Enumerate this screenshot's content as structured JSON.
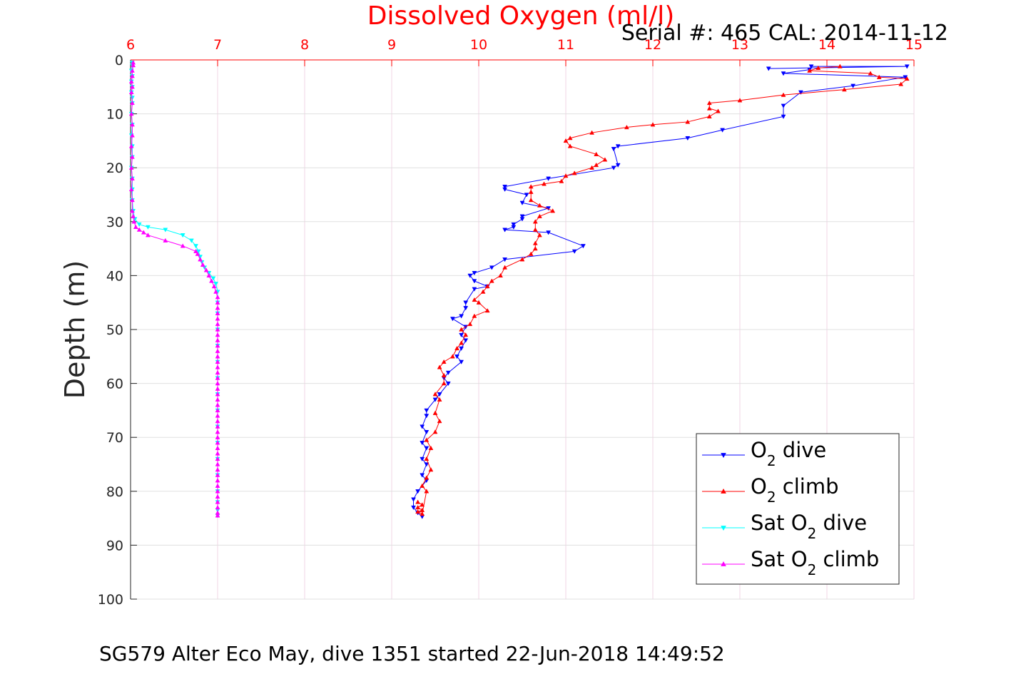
{
  "chart_data": {
    "type": "line",
    "title": "Dissolved Oxygen (ml/l)",
    "subtitle": "Serial #: 465  CAL: 2014-11-12",
    "footer": "SG579 Alter Eco May, dive 1351 started 22-Jun-2018 14:49:52",
    "ylabel": "Depth (m)",
    "xlabel": "",
    "xlim": [
      6,
      15
    ],
    "ylim": [
      0,
      100
    ],
    "y_reversed": true,
    "x_axis_position": "top",
    "grid": true,
    "x_ticks": [
      "6",
      "7",
      "8",
      "9",
      "10",
      "11",
      "12",
      "13",
      "14",
      "15"
    ],
    "y_ticks": [
      "0",
      "10",
      "20",
      "30",
      "40",
      "50",
      "60",
      "70",
      "80",
      "90",
      "100"
    ],
    "legend": {
      "position": "bottom-right",
      "entries": [
        {
          "label": "O",
          "sub": "2",
          "suffix": " dive",
          "color": "#0000ff",
          "marker": "triangle-down"
        },
        {
          "label": "O",
          "sub": "2",
          "suffix": " climb",
          "color": "#ff0000",
          "marker": "triangle-up"
        },
        {
          "label": "Sat O",
          "sub": "2",
          "suffix": " dive",
          "color": "#00ffff",
          "marker": "triangle-down"
        },
        {
          "label": "Sat O",
          "sub": "2",
          "suffix": " climb",
          "color": "#ff00ff",
          "marker": "triangle-up"
        }
      ]
    },
    "series": [
      {
        "name": "O2 dive",
        "color": "#0000ff",
        "marker": "triangle-down",
        "points": [
          [
            13.33,
            1.6
          ],
          [
            14.92,
            1.2
          ],
          [
            13.82,
            1.2
          ],
          [
            13.8,
            1.8
          ],
          [
            13.5,
            2.5
          ],
          [
            14.9,
            3.2
          ],
          [
            14.3,
            4.8
          ],
          [
            13.7,
            6
          ],
          [
            13.5,
            8.5
          ],
          [
            13.5,
            10.5
          ],
          [
            12.8,
            13
          ],
          [
            12.4,
            14.5
          ],
          [
            11.6,
            16
          ],
          [
            11.55,
            16.5
          ],
          [
            11.6,
            19.5
          ],
          [
            11.55,
            20
          ],
          [
            10.8,
            22
          ],
          [
            10.3,
            23.5
          ],
          [
            10.3,
            24
          ],
          [
            10.55,
            25
          ],
          [
            10.5,
            26.5
          ],
          [
            10.8,
            27.5
          ],
          [
            10.5,
            29
          ],
          [
            10.5,
            29.5
          ],
          [
            10.4,
            30.5
          ],
          [
            10.4,
            31
          ],
          [
            10.3,
            31.5
          ],
          [
            10.8,
            32
          ],
          [
            11.2,
            34.5
          ],
          [
            11.1,
            35.5
          ],
          [
            10.3,
            37
          ],
          [
            10.15,
            38.5
          ],
          [
            9.95,
            39.5
          ],
          [
            9.9,
            40
          ],
          [
            9.95,
            41
          ],
          [
            10.1,
            42
          ],
          [
            9.95,
            42.5
          ],
          [
            9.85,
            45
          ],
          [
            9.85,
            46
          ],
          [
            9.8,
            47.5
          ],
          [
            9.7,
            48
          ],
          [
            9.85,
            49.5
          ],
          [
            9.8,
            51
          ],
          [
            9.85,
            52
          ],
          [
            9.8,
            53.5
          ],
          [
            9.75,
            55
          ],
          [
            9.8,
            56
          ],
          [
            9.65,
            58
          ],
          [
            9.6,
            59
          ],
          [
            9.65,
            60
          ],
          [
            9.55,
            62
          ],
          [
            9.5,
            63
          ],
          [
            9.4,
            65
          ],
          [
            9.4,
            66
          ],
          [
            9.35,
            68
          ],
          [
            9.4,
            69
          ],
          [
            9.35,
            71
          ],
          [
            9.4,
            72
          ],
          [
            9.35,
            74
          ],
          [
            9.4,
            75
          ],
          [
            9.35,
            77
          ],
          [
            9.4,
            78
          ],
          [
            9.3,
            80
          ],
          [
            9.25,
            81.5
          ],
          [
            9.25,
            83
          ],
          [
            9.3,
            84
          ],
          [
            9.35,
            84.7
          ]
        ]
      },
      {
        "name": "O2 climb",
        "color": "#ff0000",
        "marker": "triangle-up",
        "points": [
          [
            9.3,
            82
          ],
          [
            9.35,
            82.5
          ],
          [
            9.3,
            83
          ],
          [
            9.35,
            83.5
          ],
          [
            9.3,
            83.8
          ],
          [
            9.35,
            84.2
          ],
          [
            9.4,
            80
          ],
          [
            9.35,
            79
          ],
          [
            9.4,
            77.5
          ],
          [
            9.45,
            76
          ],
          [
            9.4,
            74
          ],
          [
            9.45,
            72
          ],
          [
            9.4,
            70.5
          ],
          [
            9.5,
            69
          ],
          [
            9.55,
            67
          ],
          [
            9.5,
            65.5
          ],
          [
            9.55,
            63
          ],
          [
            9.5,
            62
          ],
          [
            9.6,
            60
          ],
          [
            9.6,
            58.5
          ],
          [
            9.55,
            57
          ],
          [
            9.6,
            56
          ],
          [
            9.7,
            55
          ],
          [
            9.75,
            53.5
          ],
          [
            9.8,
            52.5
          ],
          [
            9.85,
            51
          ],
          [
            9.8,
            50
          ],
          [
            9.9,
            49
          ],
          [
            9.95,
            47.5
          ],
          [
            10.1,
            46.5
          ],
          [
            10.0,
            45
          ],
          [
            9.95,
            44.5
          ],
          [
            10.05,
            43
          ],
          [
            10.1,
            42
          ],
          [
            10.15,
            41
          ],
          [
            10.25,
            40
          ],
          [
            10.3,
            38.5
          ],
          [
            10.5,
            37
          ],
          [
            10.6,
            36
          ],
          [
            10.65,
            35
          ],
          [
            10.65,
            34
          ],
          [
            10.7,
            32.5
          ],
          [
            10.65,
            31.5
          ],
          [
            10.65,
            30
          ],
          [
            10.7,
            29
          ],
          [
            10.85,
            28
          ],
          [
            10.7,
            27
          ],
          [
            10.6,
            26
          ],
          [
            10.6,
            24.5
          ],
          [
            10.6,
            23.5
          ],
          [
            10.75,
            23
          ],
          [
            10.95,
            22.5
          ],
          [
            11.0,
            21.5
          ],
          [
            11.1,
            21
          ],
          [
            11.3,
            20
          ],
          [
            11.35,
            19.5
          ],
          [
            11.45,
            18.5
          ],
          [
            11.35,
            17.5
          ],
          [
            11.05,
            16
          ],
          [
            11.0,
            15
          ],
          [
            11.05,
            14.5
          ],
          [
            11.3,
            13.5
          ],
          [
            11.7,
            12.5
          ],
          [
            12.0,
            12
          ],
          [
            12.4,
            11.5
          ],
          [
            12.65,
            10.5
          ],
          [
            12.75,
            9.5
          ],
          [
            12.65,
            9
          ],
          [
            12.65,
            8
          ],
          [
            13.0,
            7.5
          ],
          [
            13.5,
            6.5
          ],
          [
            14.2,
            5.5
          ],
          [
            14.85,
            4.5
          ],
          [
            14.92,
            3.5
          ],
          [
            14.6,
            3.2
          ],
          [
            14.5,
            2.5
          ],
          [
            13.8,
            2
          ],
          [
            13.9,
            1.5
          ],
          [
            14.15,
            1.2
          ]
        ]
      },
      {
        "name": "Sat O2 dive",
        "color": "#00ffff",
        "marker": "triangle-down",
        "points": [
          [
            6.02,
            0.5
          ],
          [
            6.02,
            1
          ],
          [
            6.01,
            2
          ],
          [
            6.02,
            3
          ],
          [
            6.01,
            4
          ],
          [
            6.02,
            5
          ],
          [
            6.01,
            6
          ],
          [
            6.02,
            7
          ],
          [
            6.02,
            8
          ],
          [
            6.01,
            10
          ],
          [
            6.02,
            12
          ],
          [
            6.01,
            14
          ],
          [
            6.02,
            16
          ],
          [
            6.02,
            18
          ],
          [
            6.01,
            20
          ],
          [
            6.02,
            22
          ],
          [
            6.02,
            24
          ],
          [
            6.02,
            26
          ],
          [
            6.03,
            28
          ],
          [
            6.05,
            29.5
          ],
          [
            6.1,
            30.5
          ],
          [
            6.2,
            31
          ],
          [
            6.4,
            31.5
          ],
          [
            6.6,
            32.5
          ],
          [
            6.7,
            33.5
          ],
          [
            6.75,
            34.5
          ],
          [
            6.78,
            35.5
          ],
          [
            6.8,
            36.5
          ],
          [
            6.82,
            37.5
          ],
          [
            6.85,
            38.5
          ],
          [
            6.9,
            39.5
          ],
          [
            6.95,
            40.5
          ],
          [
            6.98,
            41.5
          ],
          [
            7.0,
            43
          ],
          [
            7.0,
            45
          ],
          [
            7.0,
            47
          ],
          [
            7.0,
            50
          ],
          [
            7.0,
            53
          ],
          [
            7.0,
            56
          ],
          [
            7.0,
            59
          ],
          [
            7.0,
            62
          ],
          [
            7.0,
            65
          ],
          [
            7.0,
            68
          ],
          [
            7.0,
            71
          ],
          [
            7.0,
            74
          ],
          [
            7.0,
            77
          ],
          [
            7.0,
            80
          ],
          [
            7.0,
            82
          ],
          [
            7.0,
            83.5
          ],
          [
            7.0,
            84.5
          ]
        ]
      },
      {
        "name": "Sat O2 climb",
        "color": "#ff00ff",
        "marker": "triangle-up",
        "points": [
          [
            7.0,
            84.5
          ],
          [
            7.0,
            84
          ],
          [
            7.0,
            83
          ],
          [
            7.0,
            82
          ],
          [
            7.0,
            81
          ],
          [
            7.0,
            80
          ],
          [
            7.0,
            79
          ],
          [
            7.0,
            78
          ],
          [
            7.0,
            77
          ],
          [
            7.0,
            76
          ],
          [
            7.0,
            75
          ],
          [
            7.0,
            74
          ],
          [
            7.0,
            73
          ],
          [
            7.0,
            72
          ],
          [
            7.0,
            71
          ],
          [
            7.0,
            70
          ],
          [
            7.0,
            69
          ],
          [
            7.0,
            68
          ],
          [
            7.0,
            67
          ],
          [
            7.0,
            66
          ],
          [
            7.0,
            65
          ],
          [
            7.0,
            64
          ],
          [
            7.0,
            63
          ],
          [
            7.0,
            62
          ],
          [
            7.0,
            61
          ],
          [
            7.0,
            60
          ],
          [
            7.0,
            59
          ],
          [
            7.0,
            58
          ],
          [
            7.0,
            57
          ],
          [
            7.0,
            56
          ],
          [
            7.0,
            55
          ],
          [
            7.0,
            54
          ],
          [
            7.0,
            53
          ],
          [
            7.0,
            52
          ],
          [
            7.0,
            51
          ],
          [
            7.0,
            50
          ],
          [
            7.0,
            49
          ],
          [
            7.0,
            48
          ],
          [
            7.0,
            47
          ],
          [
            7.0,
            46
          ],
          [
            7.0,
            45
          ],
          [
            7.0,
            44
          ],
          [
            6.98,
            43
          ],
          [
            6.96,
            42
          ],
          [
            6.93,
            41
          ],
          [
            6.9,
            40
          ],
          [
            6.87,
            39
          ],
          [
            6.83,
            38
          ],
          [
            6.8,
            37
          ],
          [
            6.77,
            36
          ],
          [
            6.75,
            35.5
          ],
          [
            6.6,
            34.5
          ],
          [
            6.4,
            33.5
          ],
          [
            6.2,
            32.5
          ],
          [
            6.15,
            32
          ],
          [
            6.1,
            31.5
          ],
          [
            6.06,
            31
          ],
          [
            6.04,
            30
          ],
          [
            6.03,
            29
          ],
          [
            6.02,
            28
          ],
          [
            6.02,
            26
          ],
          [
            6.01,
            24
          ],
          [
            6.02,
            22
          ],
          [
            6.01,
            20
          ],
          [
            6.02,
            18
          ],
          [
            6.01,
            16
          ],
          [
            6.02,
            14
          ],
          [
            6.02,
            12
          ],
          [
            6.01,
            10
          ],
          [
            6.02,
            8
          ],
          [
            6.01,
            6
          ],
          [
            6.02,
            5
          ],
          [
            6.01,
            4
          ],
          [
            6.02,
            3
          ],
          [
            6.02,
            2
          ],
          [
            6.03,
            1
          ],
          [
            6.03,
            0.5
          ]
        ]
      }
    ]
  }
}
